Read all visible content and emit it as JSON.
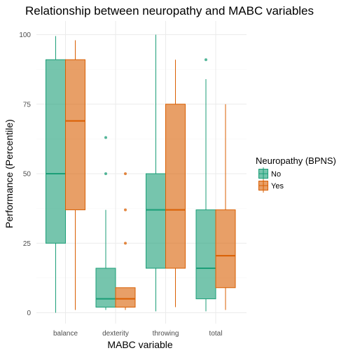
{
  "chart_data": {
    "type": "boxplot",
    "title": "Relationship between neuropathy and MABC variables",
    "xlabel": "MABC variable",
    "ylabel": "Performance (Percentile)",
    "ylim": [
      0,
      100
    ],
    "yticks": [
      0,
      25,
      50,
      75,
      100
    ],
    "grid": true,
    "legend": {
      "title": "Neuropathy (BPNS)",
      "position": "right"
    },
    "categories": [
      "balance",
      "dexterity",
      "throwing",
      "total"
    ],
    "series": [
      {
        "name": "No",
        "color": "#1b9e77",
        "boxes": [
          {
            "min": 0,
            "q1": 25,
            "median": 50,
            "q3": 91,
            "max": 99.5,
            "outliers": []
          },
          {
            "min": 1,
            "q1": 2,
            "median": 5,
            "q3": 16,
            "max": 37,
            "outliers": [
              50,
              63
            ]
          },
          {
            "min": 0.5,
            "q1": 16,
            "median": 37,
            "q3": 50,
            "max": 100,
            "outliers": []
          },
          {
            "min": 0.5,
            "q1": 5,
            "median": 16,
            "q3": 37,
            "max": 84,
            "outliers": [
              91
            ]
          }
        ]
      },
      {
        "name": "Yes",
        "color": "#d95f02",
        "boxes": [
          {
            "min": 1,
            "q1": 37,
            "median": 69,
            "q3": 91,
            "max": 98,
            "outliers": []
          },
          {
            "min": 1,
            "q1": 2,
            "median": 5,
            "q3": 9,
            "max": 9,
            "outliers": [
              25,
              37,
              50
            ]
          },
          {
            "min": 2,
            "q1": 16,
            "median": 37,
            "q3": 75,
            "max": 91,
            "outliers": []
          },
          {
            "min": 1,
            "q1": 9,
            "median": 20.5,
            "q3": 37,
            "max": 75,
            "outliers": []
          }
        ]
      }
    ]
  }
}
